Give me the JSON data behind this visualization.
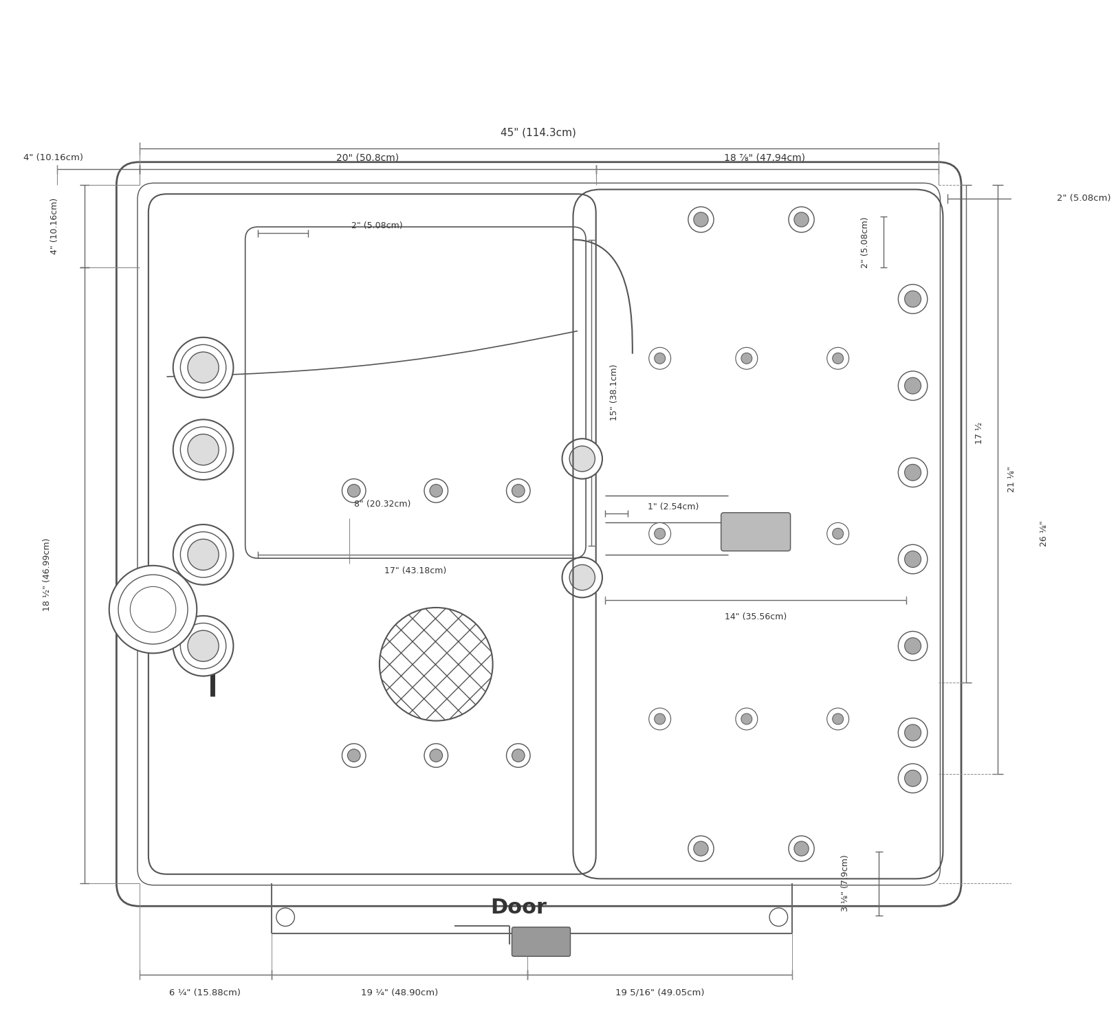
{
  "bg_color": "#ffffff",
  "line_color": "#555555",
  "text_color": "#333333",
  "fig_width": 16,
  "fig_height": 16,
  "annotations": {
    "top_width": "45\" (114.3cm)",
    "left_4h": "4\" (10.16cm)",
    "left_4v": "4\" (10.16cm)",
    "left_18": "18 ½\" (46.99cm)",
    "top_20": "20\" (50.8cm)",
    "top_18_7_8": "18 ⅞\" (47.94cm)",
    "right_2h": "2\" (5.08cm)",
    "inner_2": "2\" (5.08cm)",
    "inner_17": "17\" (43.18cm)",
    "inner_8": "8\" (20.32cm)",
    "inner_15": "15\" (38.1cm)",
    "right_2v": "2\" (5.08cm)",
    "right_1": "1\" (2.54cm)",
    "right_14": "14\" (35.56cm)",
    "right_3_1_8": "3 ⅛\" (7.9cm)",
    "right_17_1_2": "17 ½",
    "right_21_1_8": "21 ⅛\"",
    "right_26_1_8": "26 ⅛\"",
    "door_label": "Door",
    "bot_6_1_4": "6 ¼\" (15.88cm)",
    "bot_19_1_4": "19 ¼\" (48.90cm)",
    "bot_19_5_16": "19 5/16\" (49.05cm)"
  }
}
